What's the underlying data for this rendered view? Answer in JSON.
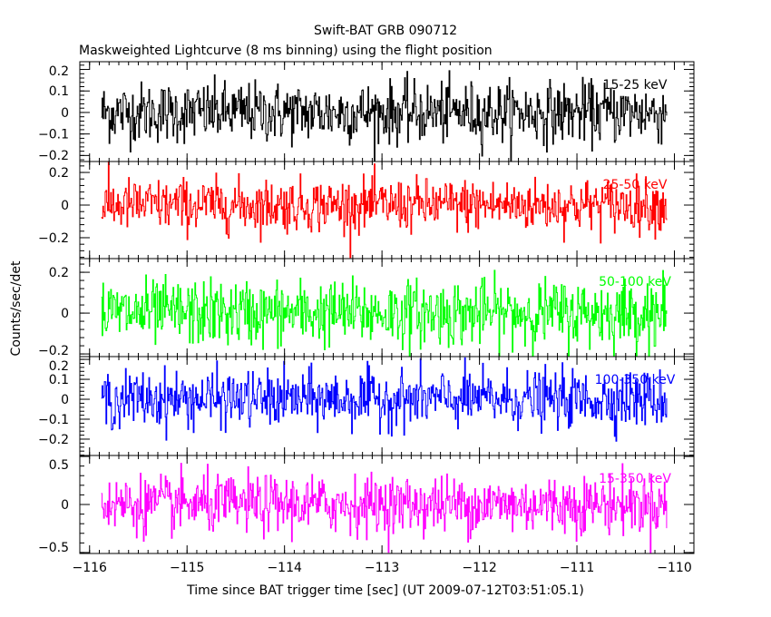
{
  "chart_data": {
    "type": "line",
    "title": "Swift-BAT GRB 090712",
    "subtitle": "Maskweighted Lightcurve (8 ms binning) using the flight position",
    "xlabel": "Time since BAT trigger time [sec] (UT 2009-07-12T03:51:05.1)",
    "ylabel": "Counts/sec/det",
    "xlim": [
      -116.1,
      -109.8
    ],
    "x_ticks": [
      -116,
      -115,
      -114,
      -113,
      -112,
      -111,
      -110
    ],
    "x_tick_labels": [
      "−116",
      "−115",
      "−114",
      "−113",
      "−112",
      "−111",
      "−110"
    ],
    "data_x_range": [
      -115.88,
      -110.08
    ],
    "bin_size_sec": 0.008,
    "panels": [
      {
        "name": "15-25 keV",
        "color": "#000000",
        "ylim": [
          -0.228,
          0.236
        ],
        "y_ticks": [
          -0.2,
          -0.1,
          0,
          0.1,
          0.2
        ],
        "y_tick_labels": [
          "−0.2",
          "−0.1",
          "0",
          "0.1",
          "0.2"
        ],
        "noise_rms": 0.07,
        "mean": 0.0
      },
      {
        "name": "25-50 keV",
        "color": "#ff0000",
        "ylim": [
          -0.328,
          0.267
        ],
        "y_ticks": [
          -0.2,
          0,
          0.2
        ],
        "y_tick_labels": [
          "−0.2",
          "0",
          "0.2"
        ],
        "noise_rms": 0.08,
        "mean": 0.0
      },
      {
        "name": "50-100 keV",
        "color": "#00ff00",
        "ylim": [
          -0.213,
          0.267
        ],
        "y_ticks": [
          -0.2,
          0,
          0.2
        ],
        "y_tick_labels": [
          "−0.2",
          "0",
          "0.2"
        ],
        "noise_rms": 0.08,
        "mean": 0.0
      },
      {
        "name": "100-350 keV",
        "color": "#0000ff",
        "ylim": [
          -0.282,
          0.214
        ],
        "y_ticks": [
          -0.2,
          -0.1,
          0,
          0.1,
          0.2
        ],
        "y_tick_labels": [
          "−0.2",
          "−0.1",
          "0",
          "0.1",
          "0.2"
        ],
        "noise_rms": 0.07,
        "mean": 0.0
      },
      {
        "name": "15-350 keV",
        "color": "#ff00ff",
        "ylim": [
          -0.51,
          0.51
        ],
        "y_ticks": [
          -0.5,
          0,
          0.5
        ],
        "y_tick_labels": [
          "−0.5",
          "0",
          "0.5"
        ],
        "noise_rms": 0.15,
        "mean": 0.0
      }
    ]
  }
}
